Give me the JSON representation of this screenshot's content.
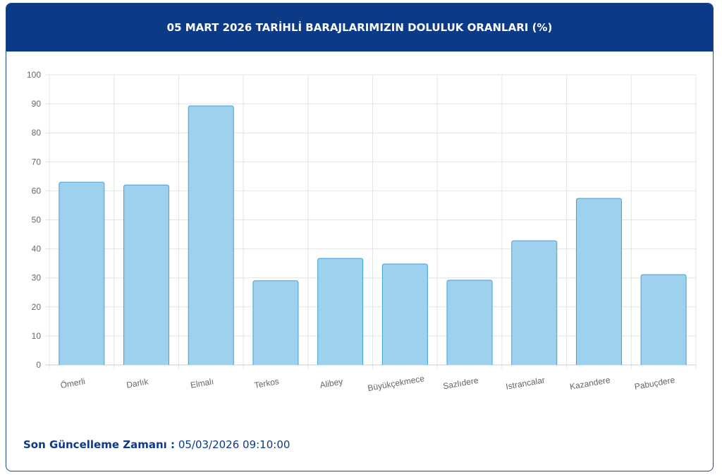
{
  "header": {
    "title": "05 MART 2026 TARİHLİ BARAJLARIMIZIN DOLULUK ORANLARI (%)"
  },
  "chart_data": {
    "type": "bar",
    "categories": [
      "Ömerli",
      "Darlık",
      "Elmalı",
      "Terkos",
      "Alibey",
      "Büyükçekmece",
      "Sazlıdere",
      "Istrancalar",
      "Kazandere",
      "Pabuçdere"
    ],
    "values": [
      63.0,
      62.0,
      89.3,
      29.0,
      36.7,
      34.8,
      29.2,
      42.8,
      57.4,
      31.1
    ],
    "color": "#9dd1ee",
    "border_color": "#3fa2d8",
    "ylim": [
      0,
      100
    ],
    "yticks": [
      0,
      10,
      20,
      30,
      40,
      50,
      60,
      70,
      80,
      90,
      100
    ],
    "grid": true
  },
  "footer": {
    "label": "Son Güncelleme Zamanı :",
    "value": "05/03/2026 09:10:00"
  }
}
